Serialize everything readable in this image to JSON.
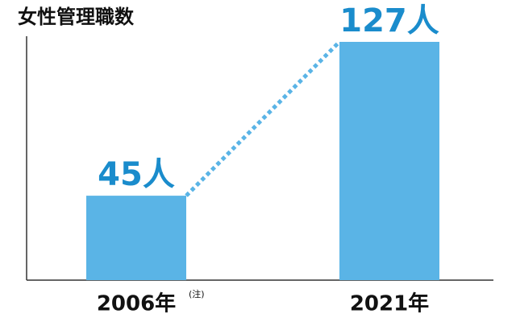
{
  "chart_data": {
    "type": "bar",
    "title": "女性管理職数",
    "categories": [
      "2006年",
      "2021年"
    ],
    "category_note": "(注)",
    "values": [
      45,
      127
    ],
    "value_labels": [
      "45人",
      "127人"
    ],
    "color": "#5ab4e6",
    "label_color": "#1a8ccc",
    "connector": "dotted",
    "ylim": [
      0,
      130
    ]
  }
}
